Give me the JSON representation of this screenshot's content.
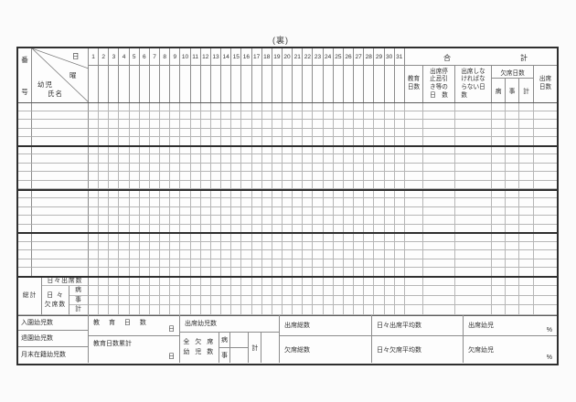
{
  "page": {
    "side_label": "(裏)"
  },
  "table": {
    "header": {
      "number_label_top": "番",
      "number_label_bottom": "号",
      "day_label": "日",
      "weekday_label": "曜",
      "child_label_line1": "幼児",
      "child_label_line2": "氏名",
      "days": [
        "1",
        "2",
        "3",
        "4",
        "5",
        "6",
        "7",
        "8",
        "9",
        "10",
        "11",
        "12",
        "13",
        "14",
        "15",
        "16",
        "17",
        "18",
        "19",
        "20",
        "21",
        "22",
        "23",
        "24",
        "25",
        "26",
        "27",
        "28",
        "29",
        "30",
        "31"
      ],
      "total_group": {
        "left": "合",
        "right": "計"
      },
      "summary_columns": {
        "education_days": "教育\n日数",
        "suspension_days": "出席停\n止忌引\nき等の\n日　数",
        "required_days": "出席しな\nければな\nらない日\n数",
        "absence_days_group": "欠席日数",
        "absence_sick": "病",
        "absence_personal": "事",
        "absence_total": "計",
        "attendance_days": "出席\n日数"
      }
    },
    "totals": {
      "label": "総計",
      "daily_attendance": "日々出席数",
      "daily_absence": "日 々\n欠席数",
      "sub_sick": "病",
      "sub_personal": "事",
      "sub_total": "計"
    },
    "footer": {
      "entered_children": "入園幼児数",
      "left_children": "退園幼児数",
      "enrolled_children_month_end": "月末在籍幼児数",
      "education_days": "教 育 日 数",
      "education_days_unit": "日",
      "education_days_cumulative": "教育日数累計",
      "education_days_cumulative_unit": "日",
      "attending_children": "出席幼児数",
      "all_absent_children": "全 欠 席\n幼 児 数",
      "absent_sick": "病",
      "absent_personal": "事",
      "absent_total": "計",
      "attendance_grand_total": "出席総数",
      "absence_grand_total": "欠席総数",
      "daily_attendance_average": "日々出席平均数",
      "daily_absence_average": "日々欠席平均数",
      "attendance_children_pct": "出席幼児",
      "attendance_pct_unit": "%",
      "absence_children_pct": "欠席幼児",
      "absence_pct_unit": "%"
    }
  }
}
